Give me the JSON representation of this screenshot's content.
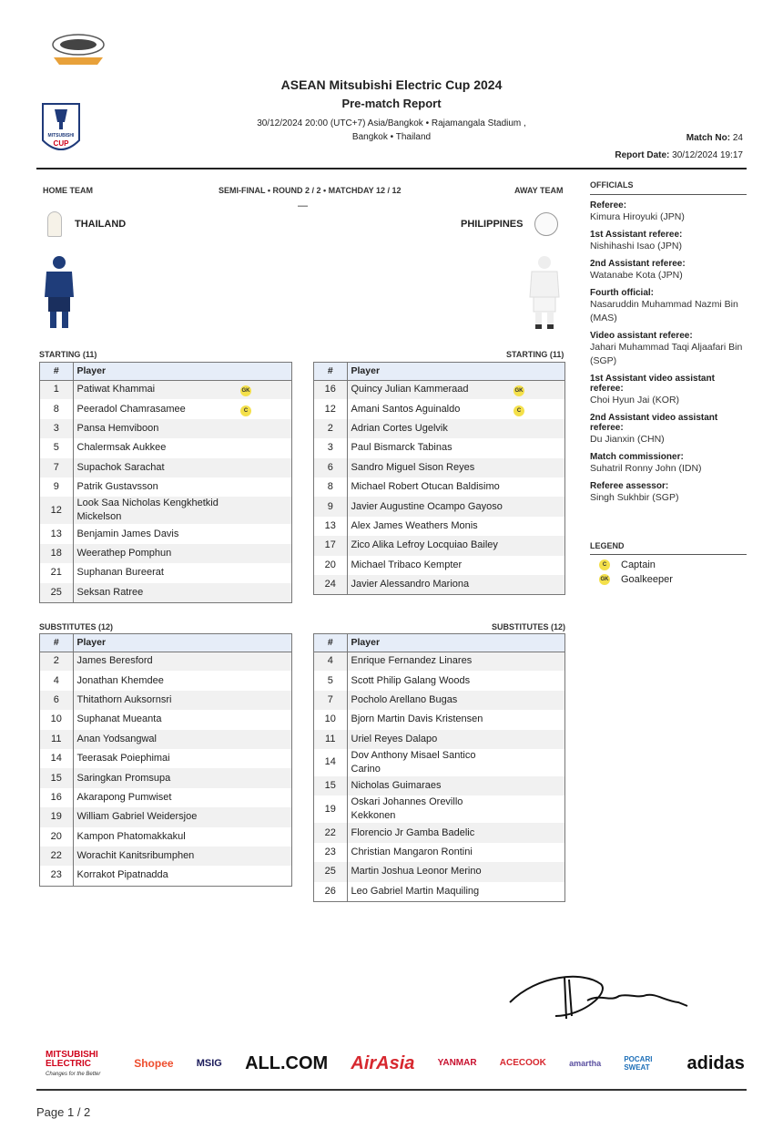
{
  "header": {
    "title": "ASEAN Mitsubishi Electric Cup 2024",
    "subtitle": "Pre-match Report",
    "datetime_venue": "30/12/2024 20:00 (UTC+7) Asia/Bangkok  •  Rajamangala Stadium ,",
    "location": "Bangkok  •  Thailand",
    "match_no_label": "Match No:",
    "match_no": "24",
    "report_date_label": "Report Date:",
    "report_date": "30/12/2024 19:17",
    "cup_logo_text": "MITSUBISHI ELECTRIC CUP"
  },
  "match": {
    "home_label": "HOME TEAM",
    "away_label": "AWAY TEAM",
    "stage": "SEMI-FINAL • ROUND 2 / 2 • MATCHDAY 12 / 12",
    "score": "—",
    "home_team": "THAILAND",
    "away_team": "PHILIPPINES",
    "home_kit_color": "#1f3d7a",
    "away_kit_color": "#f4f4f4"
  },
  "columns": {
    "num": "#",
    "player": "Player"
  },
  "home_starting": {
    "label": "STARTING (11)",
    "players": [
      {
        "num": "1",
        "name": "Patiwat Khammai",
        "badge": "GK"
      },
      {
        "num": "8",
        "name": "Peeradol Chamrasamee",
        "badge": "C"
      },
      {
        "num": "3",
        "name": "Pansa Hemviboon"
      },
      {
        "num": "5",
        "name": "Chalermsak Aukkee"
      },
      {
        "num": "7",
        "name": "Supachok Sarachat"
      },
      {
        "num": "9",
        "name": "Patrik Gustavsson"
      },
      {
        "num": "12",
        "name": "Look Saa Nicholas Kengkhetkid Mickelson"
      },
      {
        "num": "13",
        "name": "Benjamin James Davis"
      },
      {
        "num": "18",
        "name": "Weerathep Pomphun"
      },
      {
        "num": "21",
        "name": "Suphanan Bureerat"
      },
      {
        "num": "25",
        "name": "Seksan Ratree"
      }
    ]
  },
  "away_starting": {
    "label": "STARTING (11)",
    "players": [
      {
        "num": "16",
        "name": "Quincy Julian Kammeraad",
        "badge": "GK"
      },
      {
        "num": "12",
        "name": "Amani Santos Aguinaldo",
        "badge": "C"
      },
      {
        "num": "2",
        "name": "Adrian Cortes Ugelvik"
      },
      {
        "num": "3",
        "name": "Paul Bismarck Tabinas"
      },
      {
        "num": "6",
        "name": "Sandro Miguel Sison Reyes"
      },
      {
        "num": "8",
        "name": "Michael Robert Otucan Baldisimo"
      },
      {
        "num": "9",
        "name": "Javier Augustine Ocampo Gayoso"
      },
      {
        "num": "13",
        "name": "Alex James Weathers Monis"
      },
      {
        "num": "17",
        "name": "Zico Alika Lefroy Locquiao Bailey"
      },
      {
        "num": "20",
        "name": "Michael Tribaco Kempter"
      },
      {
        "num": "24",
        "name": "Javier Alessandro Mariona"
      }
    ]
  },
  "home_subs": {
    "label": "SUBSTITUTES (12)",
    "players": [
      {
        "num": "2",
        "name": "James Beresford"
      },
      {
        "num": "4",
        "name": "Jonathan Khemdee"
      },
      {
        "num": "6",
        "name": "Thitathorn Auksornsri"
      },
      {
        "num": "10",
        "name": "Suphanat Mueanta"
      },
      {
        "num": "11",
        "name": "Anan Yodsangwal"
      },
      {
        "num": "14",
        "name": "Teerasak Poiephimai"
      },
      {
        "num": "15",
        "name": "Saringkan Promsupa"
      },
      {
        "num": "16",
        "name": "Akarapong Pumwiset"
      },
      {
        "num": "19",
        "name": "William Gabriel Weidersjoe"
      },
      {
        "num": "20",
        "name": "Kampon Phatomakkakul"
      },
      {
        "num": "22",
        "name": "Worachit Kanitsribumphen"
      },
      {
        "num": "23",
        "name": "Korrakot Pipatnadda"
      }
    ]
  },
  "away_subs": {
    "label": "SUBSTITUTES (12)",
    "players": [
      {
        "num": "4",
        "name": "Enrique Fernandez Linares"
      },
      {
        "num": "5",
        "name": "Scott Philip Galang Woods"
      },
      {
        "num": "7",
        "name": "Pocholo Arellano Bugas"
      },
      {
        "num": "10",
        "name": "Bjorn Martin Davis Kristensen"
      },
      {
        "num": "11",
        "name": "Uriel Reyes Dalapo"
      },
      {
        "num": "14",
        "name": "Dov Anthony Misael Santico Carino"
      },
      {
        "num": "15",
        "name": "Nicholas Guimaraes"
      },
      {
        "num": "19",
        "name": "Oskari Johannes Orevillo Kekkonen"
      },
      {
        "num": "22",
        "name": "Florencio Jr Gamba Badelic"
      },
      {
        "num": "23",
        "name": "Christian Mangaron Rontini"
      },
      {
        "num": "25",
        "name": "Martin Joshua Leonor Merino"
      },
      {
        "num": "26",
        "name": "Leo Gabriel Martin Maquiling"
      }
    ]
  },
  "officials": {
    "title": "OFFICIALS",
    "items": [
      {
        "role": "Referee:",
        "name": "Kimura Hiroyuki (JPN)"
      },
      {
        "role": "1st Assistant referee:",
        "name": "Nishihashi Isao (JPN)"
      },
      {
        "role": "2nd Assistant referee:",
        "name": "Watanabe Kota (JPN)"
      },
      {
        "role": "Fourth official:",
        "name": "Nasaruddin Muhammad Nazmi Bin (MAS)"
      },
      {
        "role": "Video assistant referee:",
        "name": "Jahari Muhammad Taqi Aljaafari Bin (SGP)"
      },
      {
        "role": "1st Assistant video assistant referee:",
        "name": "Choi Hyun Jai (KOR)"
      },
      {
        "role": "2nd Assistant video assistant referee:",
        "name": "Du Jianxin (CHN)"
      },
      {
        "role": "Match commissioner:",
        "name": "Suhatril Ronny John (IDN)"
      },
      {
        "role": "Referee assessor:",
        "name": "Singh Sukhbir (SGP)"
      }
    ]
  },
  "legend": {
    "title": "LEGEND",
    "items": [
      {
        "badge": "C",
        "label": "Captain"
      },
      {
        "badge": "GK",
        "label": "Goalkeeper"
      }
    ]
  },
  "sponsors": [
    {
      "name": "MITSUBISHI ELECTRIC",
      "tagline": "Changes for the Better",
      "color": "#d0021b"
    },
    {
      "name": "Shopee",
      "color": "#ee4d2d"
    },
    {
      "name": "MSIG",
      "color": "#1a1a5a"
    },
    {
      "name": "ALL.COM",
      "color": "#111111"
    },
    {
      "name": "AirAsia",
      "color": "#d7282f"
    },
    {
      "name": "YANMAR",
      "color": "#c8102e"
    },
    {
      "name": "ACECOOK",
      "color": "#d7282f"
    },
    {
      "name": "amartha",
      "color": "#5a4fa0"
    },
    {
      "name": "POCARI SWEAT",
      "color": "#1d6fb8"
    },
    {
      "name": "adidas",
      "color": "#111111"
    }
  ],
  "footer": {
    "page": "Page 1 / 2"
  }
}
